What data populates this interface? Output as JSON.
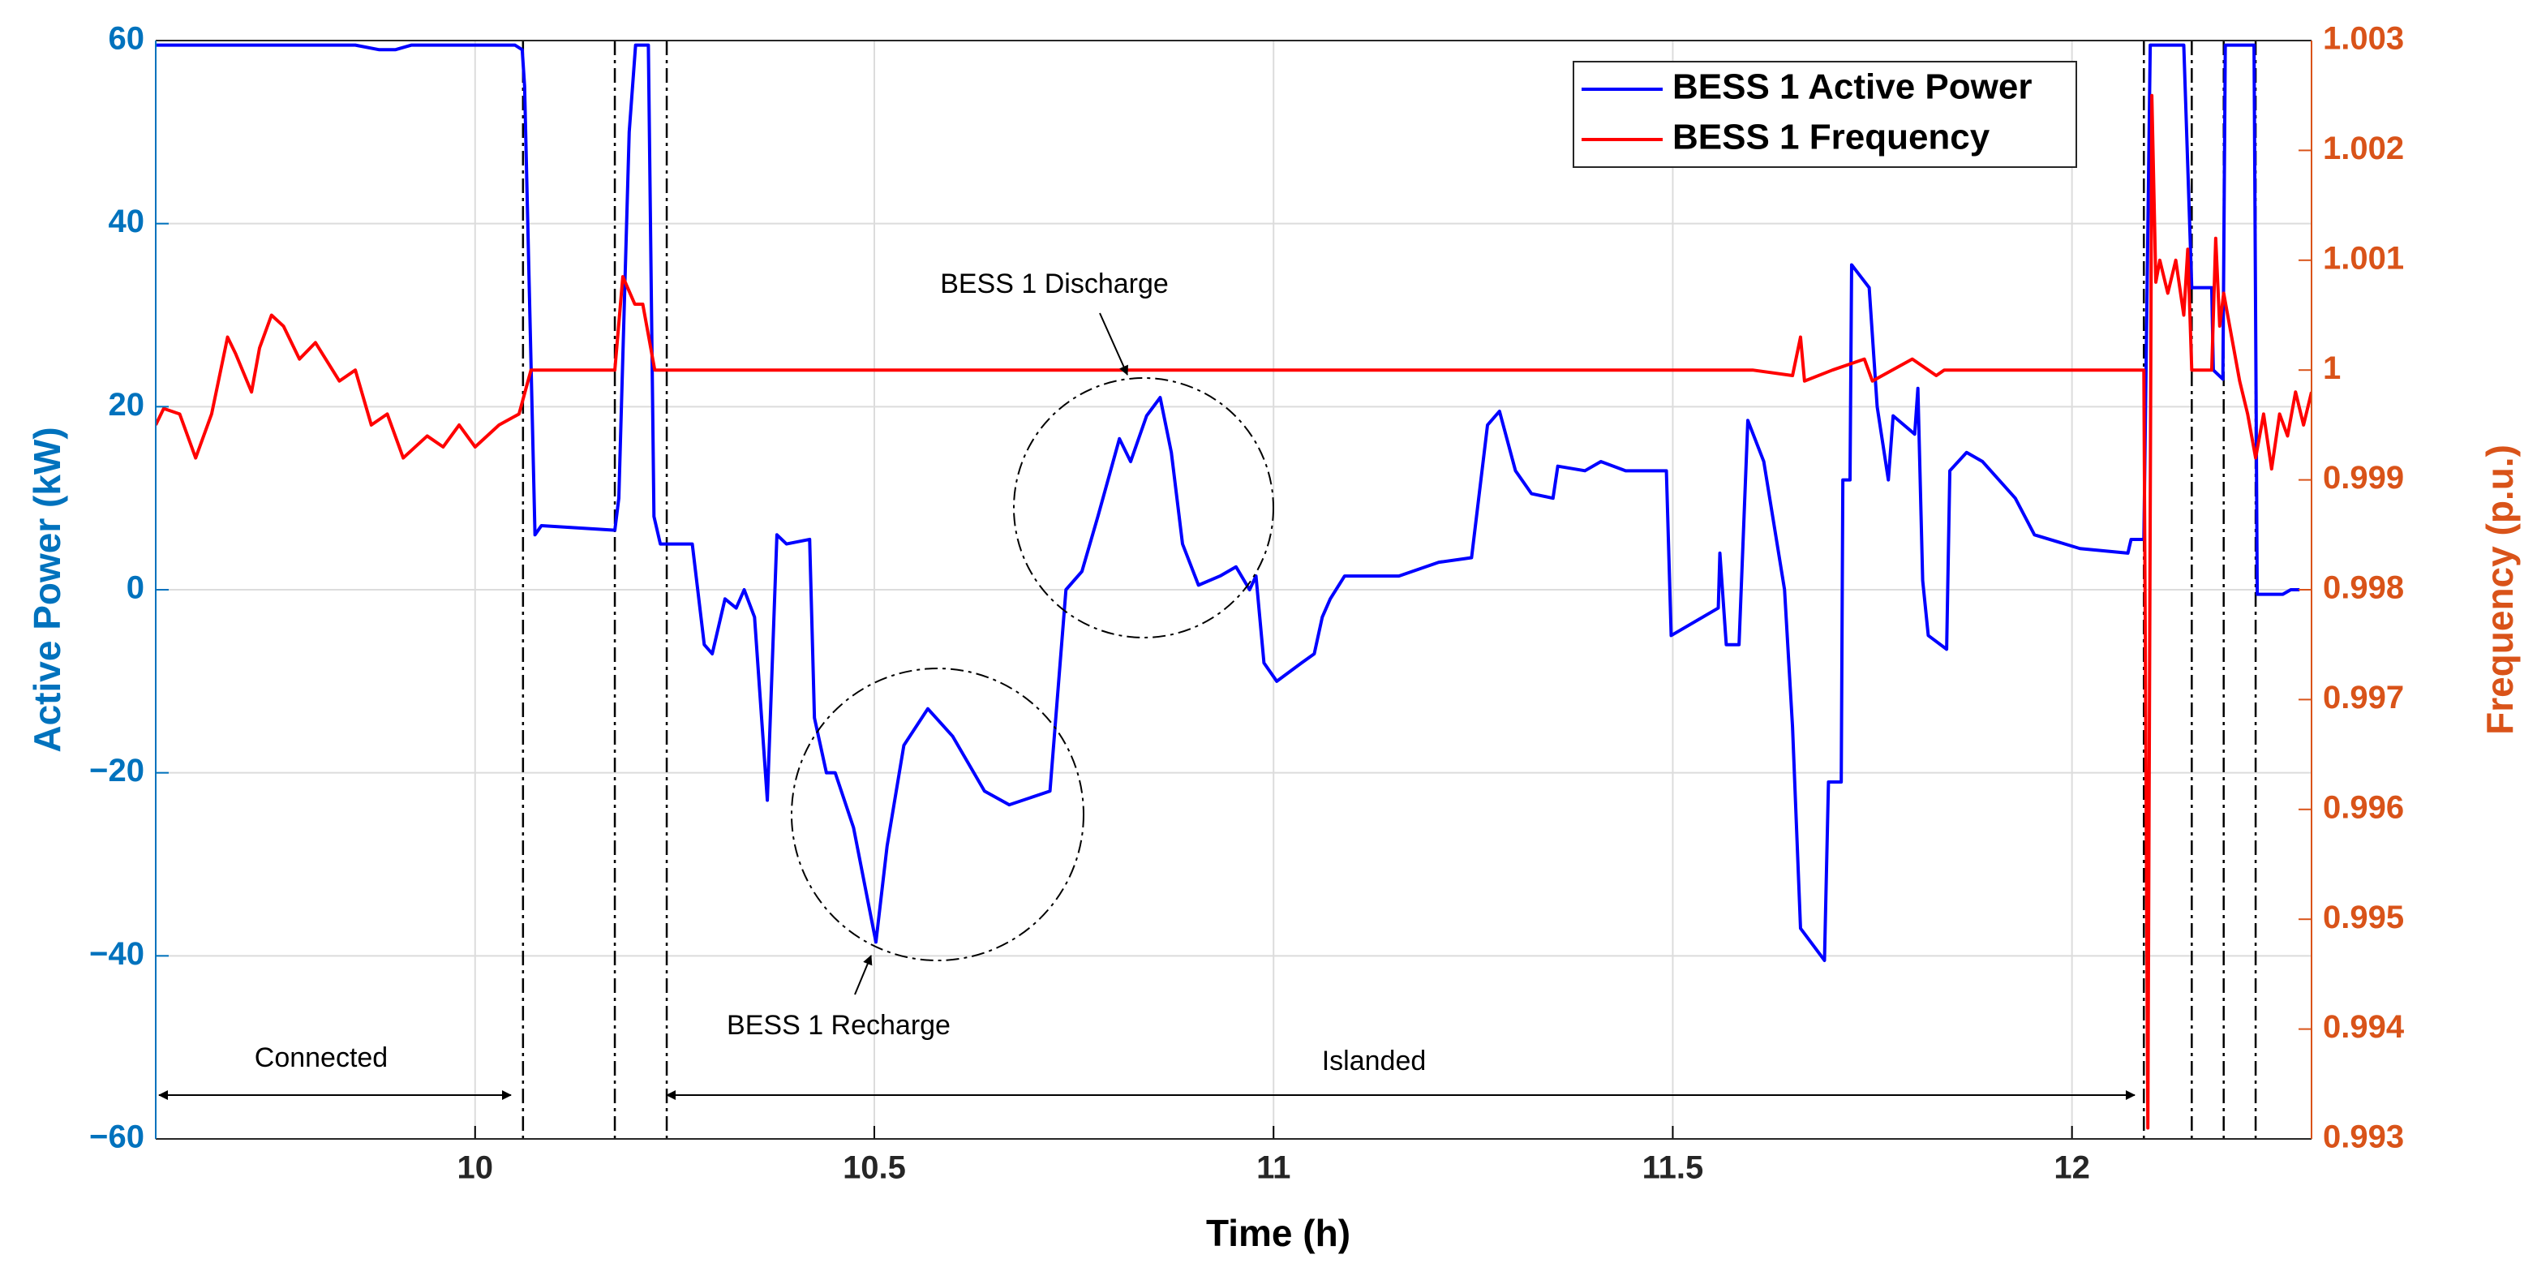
{
  "chart_data": {
    "type": "line",
    "x_label": "Time (h)",
    "y_label": "Active Power (kW)",
    "y2_label": "Frequency (p.u.)",
    "xlim": [
      9.6,
      12.3
    ],
    "xticks": [
      10,
      10.5,
      11,
      11.5,
      12
    ],
    "ylim": [
      -60,
      60
    ],
    "yticks": [
      {
        "value": -60,
        "label": "−60"
      },
      {
        "value": -40,
        "label": "−40"
      },
      {
        "value": -20,
        "label": "−20"
      },
      0,
      20,
      40,
      60
    ],
    "y2lim": [
      0.993,
      1.003
    ],
    "y2ticks": [
      0.993,
      0.994,
      0.995,
      0.996,
      0.997,
      0.998,
      0.999,
      1,
      1.001,
      1.002,
      1.003
    ],
    "y_axis_color": "#0072bd",
    "y2_axis_color": "#d95319",
    "grid": true,
    "legend": "upper right",
    "event_times": [
      10.06,
      10.175,
      10.24,
      12.09,
      12.15,
      12.19,
      12.23
    ],
    "annotations": [
      "BESS 1 Discharge",
      "BESS 1 Recharge",
      "Connected",
      "Islanded"
    ],
    "series": [
      {
        "name": "BESS 1 Active Power",
        "color": "#0000ff",
        "x": [
          9.6,
          9.85,
          9.88,
          9.9,
          9.92,
          10.05,
          10.059,
          10.062,
          10.075,
          10.083,
          10.175,
          10.18,
          10.193,
          10.201,
          10.217,
          10.224,
          10.232,
          10.272,
          10.287,
          10.297,
          10.313,
          10.327,
          10.337,
          10.35,
          10.366,
          10.378,
          10.39,
          10.419,
          10.425,
          10.44,
          10.451,
          10.474,
          10.502,
          10.516,
          10.537,
          10.567,
          10.598,
          10.638,
          10.669,
          10.72,
          10.74,
          10.76,
          10.78,
          10.807,
          10.821,
          10.841,
          10.858,
          10.872,
          10.886,
          10.906,
          10.933,
          10.953,
          10.97,
          10.978,
          10.988,
          11.004,
          11.035,
          11.051,
          11.061,
          11.071,
          11.089,
          11.157,
          11.207,
          11.248,
          11.268,
          11.283,
          11.303,
          11.323,
          11.35,
          11.356,
          11.39,
          11.41,
          11.441,
          11.492,
          11.498,
          11.557,
          11.559,
          11.567,
          11.583,
          11.594,
          11.614,
          11.64,
          11.65,
          11.66,
          11.69,
          11.695,
          11.711,
          11.713,
          11.722,
          11.724,
          11.746,
          11.756,
          11.77,
          11.776,
          11.803,
          11.807,
          11.813,
          11.82,
          11.843,
          11.847,
          11.868,
          11.888,
          11.929,
          11.953,
          12.01,
          12.07,
          12.074,
          12.09,
          12.098,
          12.14,
          12.15,
          12.175,
          12.177,
          12.189,
          12.192,
          12.228,
          12.232,
          12.264,
          12.274,
          12.285
        ],
        "values": [
          59.5,
          59.5,
          59,
          59,
          59.5,
          59.5,
          59,
          55,
          6,
          7,
          6.5,
          10,
          50,
          59.5,
          59.5,
          8,
          5,
          5,
          -6,
          -7,
          -1,
          -2,
          0,
          -3,
          -23,
          6,
          5,
          5.5,
          -14,
          -20,
          -20,
          -26,
          -38.5,
          -28,
          -17,
          -13,
          -16,
          -22,
          -23.5,
          -22,
          0,
          2,
          8,
          16.5,
          14,
          19,
          21,
          15,
          5,
          0.5,
          1.5,
          2.5,
          0,
          1.5,
          -8,
          -10,
          -8,
          -7,
          -3,
          -1,
          1.5,
          1.5,
          3,
          3.5,
          18,
          19.5,
          13,
          10.5,
          10,
          13.5,
          13,
          14,
          13,
          13,
          -5,
          -2,
          4,
          -6,
          -6,
          18.5,
          14,
          0,
          -15,
          -37,
          -40.5,
          -21,
          -21,
          12,
          12,
          35.5,
          33,
          20,
          12,
          19,
          17,
          22,
          1,
          -5,
          -6.5,
          13,
          15,
          14,
          10,
          6,
          4.5,
          4,
          5.5,
          5.5,
          59.5,
          59.5,
          33,
          33,
          24,
          23,
          59.5,
          59.5,
          -0.5,
          -0.5,
          0,
          0
        ]
      },
      {
        "name": "BESS 1 Frequency",
        "color": "#ff0000",
        "axis": "y2",
        "x": [
          9.6,
          9.61,
          9.63,
          9.65,
          9.66,
          9.67,
          9.69,
          9.7,
          9.72,
          9.73,
          9.745,
          9.76,
          9.78,
          9.8,
          9.83,
          9.85,
          9.87,
          9.89,
          9.91,
          9.94,
          9.96,
          9.98,
          10.0,
          10.03,
          10.055,
          10.07,
          10.175,
          10.185,
          10.2,
          10.21,
          10.225,
          11.6,
          11.65,
          11.66,
          11.665,
          11.7,
          11.74,
          11.75,
          11.8,
          11.83,
          11.84,
          12.09,
          12.095,
          12.1,
          12.105,
          12.11,
          12.12,
          12.13,
          12.14,
          12.145,
          12.15,
          12.165,
          12.175,
          12.18,
          12.185,
          12.19,
          12.2,
          12.21,
          12.22,
          12.23,
          12.24,
          12.25,
          12.26,
          12.27,
          12.28,
          12.29,
          12.3
        ],
        "values": [
          0.9995,
          0.99965,
          0.9996,
          0.9992,
          0.9994,
          0.9996,
          1.0003,
          1.00015,
          0.9998,
          1.0002,
          1.0005,
          1.0004,
          1.0001,
          1.00025,
          0.9999,
          1,
          0.9995,
          0.9996,
          0.9992,
          0.9994,
          0.9993,
          0.9995,
          0.9993,
          0.9995,
          0.9996,
          1,
          1,
          1.00085,
          1.0006,
          1.0006,
          1,
          1,
          0.99995,
          1.0003,
          0.9999,
          1,
          1.0001,
          0.9999,
          1.0001,
          0.99995,
          1,
          1,
          0.9931,
          1.0025,
          1.0008,
          1.001,
          1.0007,
          1.001,
          1.0005,
          1.0011,
          1,
          1,
          1,
          1.0012,
          1.0004,
          1.0007,
          1.0003,
          0.9999,
          0.9996,
          0.9992,
          0.9996,
          0.9991,
          0.9996,
          0.9994,
          0.9998,
          0.9995,
          0.9998
        ]
      }
    ]
  }
}
